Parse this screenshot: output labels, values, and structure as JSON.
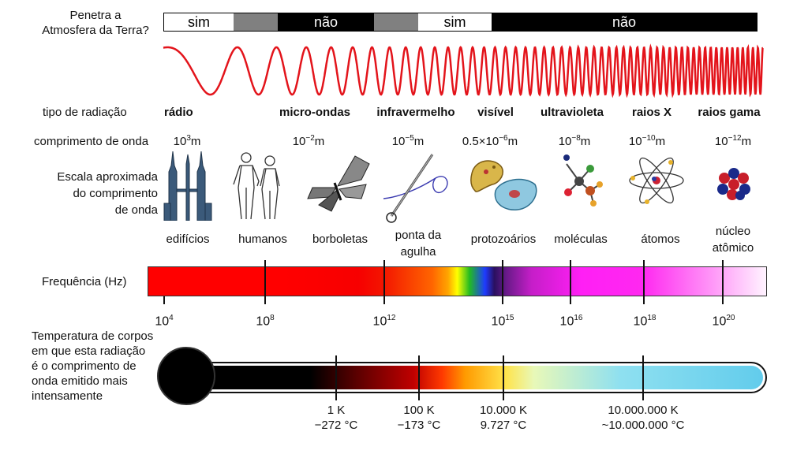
{
  "atmosphere": {
    "label_line1": "Penetra a",
    "label_line2": "Atmosfera da Terra?",
    "segments": [
      {
        "text": "sim",
        "fill": "#ffffff",
        "color": "#000000"
      },
      {
        "text": "",
        "fill": "#808080",
        "color": "#000000"
      },
      {
        "text": "não",
        "fill": "#000000",
        "color": "#ffffff"
      },
      {
        "text": "",
        "fill": "#808080",
        "color": "#000000"
      },
      {
        "text": "sim",
        "fill": "#ffffff",
        "color": "#000000"
      },
      {
        "text": "não",
        "fill": "#000000",
        "color": "#ffffff"
      }
    ]
  },
  "wave_color": "#e3141b",
  "radiation": {
    "row_label": "tipo de radiação",
    "types": [
      "rádio",
      "micro-ondas",
      "infravermelho",
      "visível",
      "ultravioleta",
      "raios X",
      "raios gama"
    ]
  },
  "wavelength": {
    "row_label": "comprimento de onda",
    "values": [
      {
        "base": "10",
        "exp": "3",
        "unit": "m"
      },
      {
        "base": "10",
        "exp": "−2",
        "unit": "m"
      },
      {
        "base": "10",
        "exp": "−5",
        "unit": "m"
      },
      {
        "base": "0.5×10",
        "exp": "−6",
        "unit": "m"
      },
      {
        "base": "10",
        "exp": "−8",
        "unit": "m"
      },
      {
        "base": "10",
        "exp": "−10",
        "unit": "m"
      },
      {
        "base": "10",
        "exp": "−12",
        "unit": "m"
      }
    ]
  },
  "scale": {
    "row_label_line1": "Escala aproximada",
    "row_label_line2": "do comprimento",
    "row_label_line3": "de onda",
    "objects": [
      {
        "line1": "edifícios",
        "line2": "",
        "icon": "buildings-icon"
      },
      {
        "line1": "humanos",
        "line2": "",
        "icon": "humans-icon"
      },
      {
        "line1": "borboletas",
        "line2": "",
        "icon": "butterfly-icon"
      },
      {
        "line1": "ponta da",
        "line2": "agulha",
        "icon": "needle-icon"
      },
      {
        "line1": "protozoários",
        "line2": "",
        "icon": "protozoa-icon"
      },
      {
        "line1": "moléculas",
        "line2": "",
        "icon": "molecule-icon"
      },
      {
        "line1": "átomos",
        "line2": "",
        "icon": "atom-icon"
      },
      {
        "line1": "núcleo",
        "line2": "atômico",
        "icon": "nucleus-icon"
      }
    ]
  },
  "frequency": {
    "row_label": "Frequência (Hz)",
    "ticks": [
      {
        "base": "10",
        "exp": "4"
      },
      {
        "base": "10",
        "exp": "8"
      },
      {
        "base": "10",
        "exp": "12"
      },
      {
        "base": "10",
        "exp": "15"
      },
      {
        "base": "10",
        "exp": "16"
      },
      {
        "base": "10",
        "exp": "18"
      },
      {
        "base": "10",
        "exp": "20"
      }
    ]
  },
  "temperature": {
    "label_line1": "Temperatura de corpos",
    "label_line2": "em que esta radiação",
    "label_line3": "é o comprimento de",
    "label_line4": "onda emitido mais",
    "label_line5": "intensamente",
    "ticks": [
      {
        "kelvin": "1 K",
        "celsius": "−272 °C"
      },
      {
        "kelvin": "100 K",
        "celsius": "−173 °C"
      },
      {
        "kelvin": "10.000 K",
        "celsius": "9.727 °C"
      },
      {
        "kelvin": "10.000.000 K",
        "celsius": "~10.000.000 °C"
      }
    ]
  }
}
